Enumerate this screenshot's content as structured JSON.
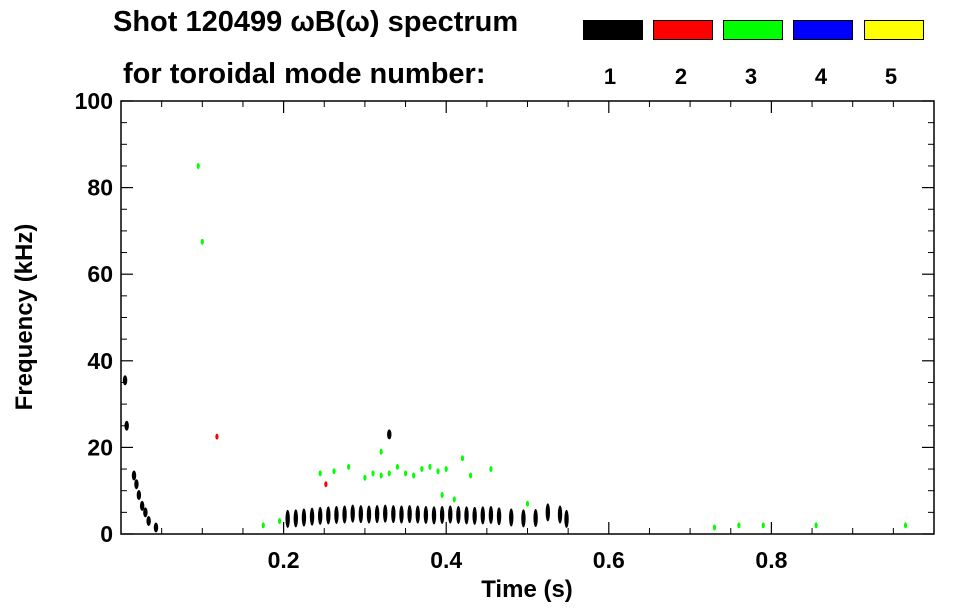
{
  "title_line1": "Shot 120499 ωB(ω) spectrum",
  "title_line2": "for toroidal mode number:",
  "legend": [
    {
      "label": "1",
      "color": "#000000"
    },
    {
      "label": "2",
      "color": "#ff0000"
    },
    {
      "label": "3",
      "color": "#00ff00"
    },
    {
      "label": "4",
      "color": "#0000ff"
    },
    {
      "label": "5",
      "color": "#ffff00"
    }
  ],
  "chart_data": {
    "type": "scatter",
    "xlabel": "Time (s)",
    "ylabel": "Frequency (kHz)",
    "xlim": [
      0.0,
      1.0
    ],
    "ylim": [
      0,
      100
    ],
    "xticks": [
      0.2,
      0.4,
      0.6,
      0.8
    ],
    "xtick_labels": [
      "0.2",
      "0.4",
      "0.6",
      "0.8"
    ],
    "yticks": [
      0,
      20,
      40,
      60,
      80,
      100
    ],
    "ytick_labels": [
      "0",
      "20",
      "40",
      "60",
      "80",
      "100"
    ],
    "grid": false,
    "series": [
      {
        "name": "1",
        "color": "#000000",
        "points": [
          {
            "x": 0.005,
            "y": 35.5
          },
          {
            "x": 0.007,
            "y": 25
          },
          {
            "x": 0.016,
            "y": 13.5
          },
          {
            "x": 0.019,
            "y": 11.5
          },
          {
            "x": 0.022,
            "y": 9
          },
          {
            "x": 0.026,
            "y": 6.5
          },
          {
            "x": 0.03,
            "y": 5
          },
          {
            "x": 0.034,
            "y": 3
          },
          {
            "x": 0.043,
            "y": 1.5
          },
          {
            "x": 0.205,
            "y": 3.5
          },
          {
            "x": 0.215,
            "y": 3.6
          },
          {
            "x": 0.225,
            "y": 3.8
          },
          {
            "x": 0.235,
            "y": 4
          },
          {
            "x": 0.245,
            "y": 4.2
          },
          {
            "x": 0.255,
            "y": 4.3
          },
          {
            "x": 0.265,
            "y": 4.4
          },
          {
            "x": 0.275,
            "y": 4.5
          },
          {
            "x": 0.285,
            "y": 4.7
          },
          {
            "x": 0.295,
            "y": 4.6
          },
          {
            "x": 0.305,
            "y": 4.5
          },
          {
            "x": 0.315,
            "y": 4.6
          },
          {
            "x": 0.325,
            "y": 4.7
          },
          {
            "x": 0.335,
            "y": 4.6
          },
          {
            "x": 0.345,
            "y": 4.5
          },
          {
            "x": 0.355,
            "y": 4.6
          },
          {
            "x": 0.365,
            "y": 4.5
          },
          {
            "x": 0.375,
            "y": 4.4
          },
          {
            "x": 0.385,
            "y": 4.3
          },
          {
            "x": 0.395,
            "y": 4.4
          },
          {
            "x": 0.405,
            "y": 4.5
          },
          {
            "x": 0.415,
            "y": 4.4
          },
          {
            "x": 0.425,
            "y": 4.3
          },
          {
            "x": 0.435,
            "y": 4.2
          },
          {
            "x": 0.445,
            "y": 4.3
          },
          {
            "x": 0.455,
            "y": 4.4
          },
          {
            "x": 0.465,
            "y": 4.1
          },
          {
            "x": 0.48,
            "y": 3.8
          },
          {
            "x": 0.495,
            "y": 3.6
          },
          {
            "x": 0.51,
            "y": 3.7
          },
          {
            "x": 0.525,
            "y": 5
          },
          {
            "x": 0.54,
            "y": 4.5
          },
          {
            "x": 0.548,
            "y": 3.5
          },
          {
            "x": 0.33,
            "y": 23
          }
        ]
      },
      {
        "name": "2",
        "color": "#ff0000",
        "points": [
          {
            "x": 0.252,
            "y": 11.5
          },
          {
            "x": 0.118,
            "y": 22.5
          }
        ]
      },
      {
        "name": "3",
        "color": "#00ff00",
        "points": [
          {
            "x": 0.095,
            "y": 85
          },
          {
            "x": 0.1,
            "y": 67.5
          },
          {
            "x": 0.175,
            "y": 2
          },
          {
            "x": 0.195,
            "y": 3
          },
          {
            "x": 0.245,
            "y": 14
          },
          {
            "x": 0.262,
            "y": 14.5
          },
          {
            "x": 0.28,
            "y": 15.5
          },
          {
            "x": 0.3,
            "y": 13
          },
          {
            "x": 0.31,
            "y": 14
          },
          {
            "x": 0.32,
            "y": 13.5
          },
          {
            "x": 0.33,
            "y": 14
          },
          {
            "x": 0.34,
            "y": 15.5
          },
          {
            "x": 0.35,
            "y": 14
          },
          {
            "x": 0.36,
            "y": 13.5
          },
          {
            "x": 0.37,
            "y": 15
          },
          {
            "x": 0.38,
            "y": 15.5
          },
          {
            "x": 0.39,
            "y": 14.5
          },
          {
            "x": 0.4,
            "y": 15
          },
          {
            "x": 0.42,
            "y": 17.5
          },
          {
            "x": 0.43,
            "y": 13.5
          },
          {
            "x": 0.455,
            "y": 15
          },
          {
            "x": 0.32,
            "y": 19
          },
          {
            "x": 0.395,
            "y": 9
          },
          {
            "x": 0.41,
            "y": 8
          },
          {
            "x": 0.5,
            "y": 7
          },
          {
            "x": 0.73,
            "y": 1.5
          },
          {
            "x": 0.76,
            "y": 2
          },
          {
            "x": 0.79,
            "y": 2
          },
          {
            "x": 0.855,
            "y": 2
          },
          {
            "x": 0.965,
            "y": 2
          }
        ]
      }
    ]
  }
}
